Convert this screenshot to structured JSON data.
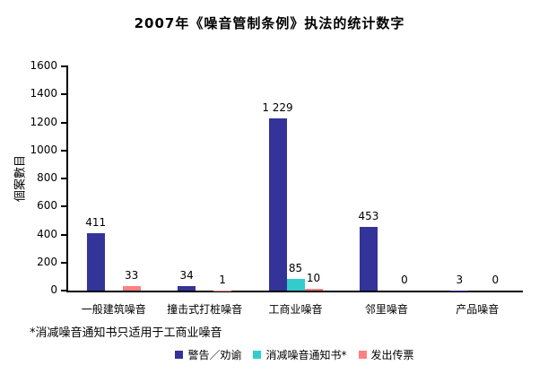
{
  "title": "2007年《噪音管制条例》执法的统计数字",
  "footnote": "*消减噪音通知书只适用于工商业噪音",
  "colors": {
    "series_warning": "#333399",
    "series_abatement_notice": "#33CCCC",
    "series_summons": "#FF8080",
    "axis": "#000000",
    "background": "#FFFFFF"
  },
  "chart_data": {
    "type": "bar",
    "title": "2007年《噪音管制条例》执法的统计数字",
    "xlabel": "",
    "ylabel": "個案數目",
    "ylim": [
      0,
      1600
    ],
    "ytick_step": 200,
    "ytick_labels": [
      "0",
      "200",
      "400",
      "600",
      "800",
      "1000",
      "1200",
      "1400",
      "1600"
    ],
    "grid": false,
    "legend_position": "bottom",
    "categories": [
      "一般建筑噪音",
      "撞击式打桩噪音",
      "工商业噪音",
      "邻里噪音",
      "产品噪音"
    ],
    "series": [
      {
        "key": "warning",
        "name": "警告／劝谕",
        "color": "#333399",
        "values": [
          411,
          34,
          1229,
          453,
          3
        ],
        "labels": [
          "411",
          "34",
          "1 229",
          "453",
          "3"
        ]
      },
      {
        "key": "abatement-notice",
        "name": "消减噪音通知书*",
        "color": "#33CCCC",
        "values": [
          null,
          null,
          85,
          null,
          null
        ],
        "labels": [
          null,
          null,
          "85",
          null,
          null
        ]
      },
      {
        "key": "summons",
        "name": "发出传票",
        "color": "#FF8080",
        "values": [
          33,
          1,
          10,
          0,
          0
        ],
        "labels": [
          "33",
          "1",
          "10",
          "0",
          "0"
        ]
      }
    ]
  }
}
